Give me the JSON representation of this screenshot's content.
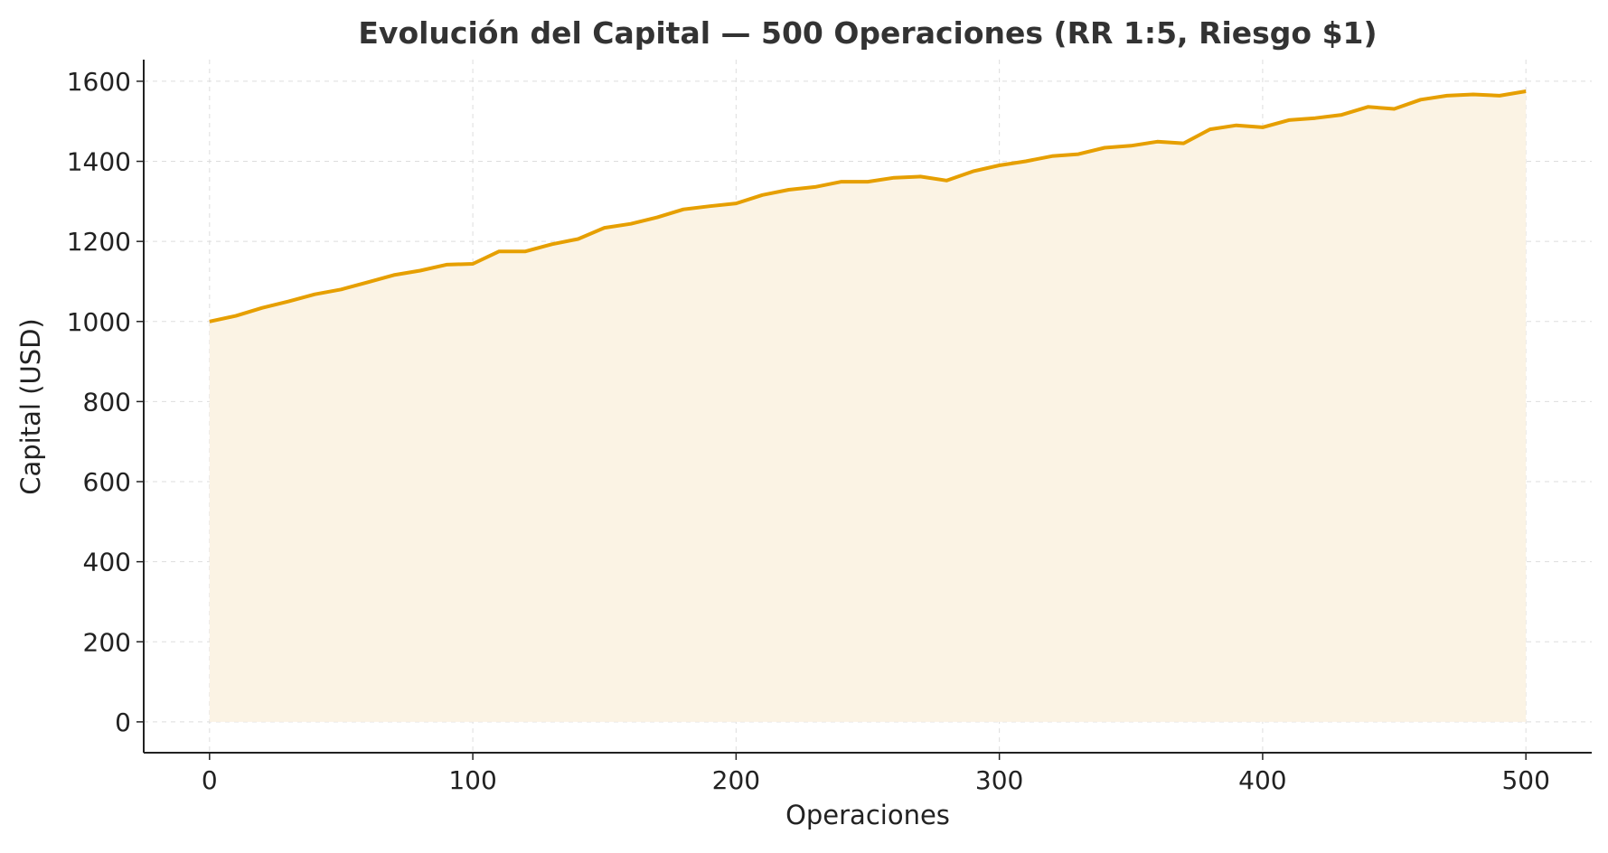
{
  "chart_data": {
    "type": "area",
    "title": "Evolución del Capital — 500 Operaciones (RR 1:5, Riesgo $1)",
    "xlabel": "Operaciones",
    "ylabel": "Capital (USD)",
    "xlim": [
      -25,
      525
    ],
    "ylim": [
      -77,
      1654
    ],
    "xticks": [
      0,
      100,
      200,
      300,
      400,
      500
    ],
    "yticks": [
      0,
      200,
      400,
      600,
      800,
      1000,
      1200,
      1400,
      1600
    ],
    "grid": true,
    "line_color": "#E69F00",
    "fill_color": "#FBF3E4",
    "x": [
      0,
      10,
      20,
      30,
      40,
      50,
      60,
      70,
      80,
      90,
      100,
      110,
      120,
      130,
      140,
      150,
      160,
      170,
      180,
      190,
      200,
      210,
      220,
      230,
      240,
      250,
      260,
      270,
      280,
      290,
      300,
      310,
      320,
      330,
      340,
      350,
      360,
      370,
      380,
      390,
      400,
      410,
      420,
      430,
      440,
      450,
      460,
      470,
      480,
      490,
      500
    ],
    "values": [
      1000,
      1014,
      1034,
      1050,
      1068,
      1080,
      1098,
      1116,
      1127,
      1142,
      1144,
      1175,
      1175,
      1193,
      1206,
      1234,
      1244,
      1260,
      1280,
      1288,
      1295,
      1316,
      1329,
      1336,
      1349,
      1349,
      1359,
      1362,
      1352,
      1375,
      1390,
      1400,
      1413,
      1418,
      1434,
      1439,
      1449,
      1445,
      1480,
      1490,
      1485,
      1503,
      1508,
      1516,
      1536,
      1531,
      1554,
      1564,
      1567,
      1564,
      1575
    ]
  }
}
